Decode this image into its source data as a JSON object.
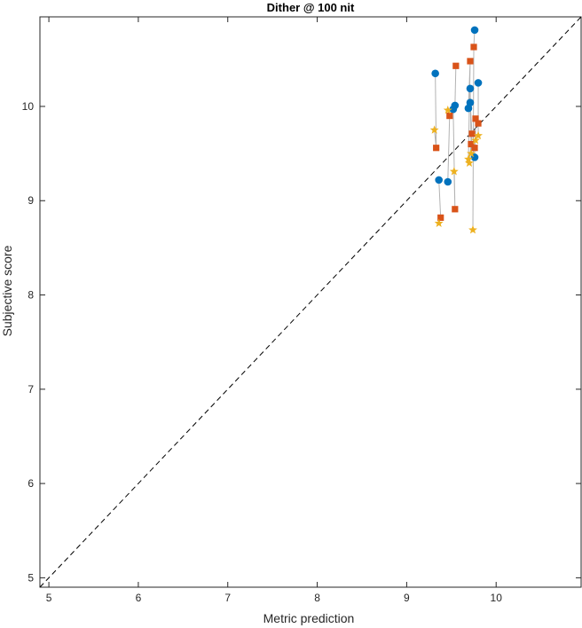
{
  "chart_data": {
    "type": "scatter",
    "title": "Dither @ 100 nit",
    "xlabel": "Metric prediction",
    "ylabel": "Subjective score",
    "xlim": [
      4.9,
      10.95
    ],
    "ylim": [
      4.9,
      10.95
    ],
    "xticks": [
      5,
      6,
      7,
      8,
      9,
      10
    ],
    "yticks": [
      5,
      6,
      7,
      8,
      9,
      10
    ],
    "xtick_labels": [
      "5",
      "6",
      "7",
      "8",
      "9",
      "10"
    ],
    "ytick_labels": [
      "5",
      "6",
      "7",
      "8",
      "9",
      "10"
    ],
    "reference_line": "y = x (dashed)",
    "grid": false,
    "series": [
      {
        "marker": "circle",
        "color": "#0072BD",
        "points": [
          [
            9.32,
            10.35
          ],
          [
            9.36,
            9.22
          ],
          [
            9.46,
            9.2
          ],
          [
            9.52,
            9.97
          ],
          [
            9.54,
            10.01
          ],
          [
            9.69,
            9.98
          ],
          [
            9.71,
            10.19
          ],
          [
            9.71,
            10.04
          ],
          [
            9.76,
            10.81
          ],
          [
            9.76,
            9.46
          ],
          [
            9.8,
            10.25
          ]
        ]
      },
      {
        "marker": "square",
        "color": "#D95319",
        "points": [
          [
            9.33,
            9.56
          ],
          [
            9.38,
            8.82
          ],
          [
            9.48,
            9.9
          ],
          [
            9.54,
            8.91
          ],
          [
            9.55,
            10.43
          ],
          [
            9.71,
            10.48
          ],
          [
            9.72,
            9.6
          ],
          [
            9.73,
            9.71
          ],
          [
            9.75,
            10.63
          ],
          [
            9.76,
            9.56
          ],
          [
            9.77,
            9.87
          ],
          [
            9.8,
            9.82
          ]
        ]
      },
      {
        "marker": "star",
        "color": "#EDB120",
        "points": [
          [
            9.31,
            9.75
          ],
          [
            9.36,
            8.76
          ],
          [
            9.46,
            9.96
          ],
          [
            9.53,
            9.31
          ],
          [
            9.69,
            9.44
          ],
          [
            9.7,
            9.4
          ],
          [
            9.72,
            9.5
          ],
          [
            9.74,
            8.69
          ],
          [
            9.77,
            9.64
          ],
          [
            9.8,
            9.69
          ]
        ]
      }
    ],
    "connectors": [
      [
        [
          9.32,
          10.35
        ],
        [
          9.33,
          9.56
        ],
        [
          9.31,
          9.75
        ]
      ],
      [
        [
          9.36,
          9.22
        ],
        [
          9.38,
          8.82
        ],
        [
          9.36,
          8.76
        ]
      ],
      [
        [
          9.46,
          9.2
        ],
        [
          9.48,
          9.9
        ],
        [
          9.46,
          9.96
        ]
      ],
      [
        [
          9.52,
          9.97
        ],
        [
          9.54,
          8.91
        ],
        [
          9.53,
          9.31
        ]
      ],
      [
        [
          9.54,
          10.01
        ],
        [
          9.55,
          10.43
        ]
      ],
      [
        [
          9.69,
          9.98
        ],
        [
          9.71,
          10.48
        ],
        [
          9.69,
          9.44
        ]
      ],
      [
        [
          9.71,
          10.19
        ],
        [
          9.72,
          9.6
        ],
        [
          9.7,
          9.4
        ]
      ],
      [
        [
          9.71,
          10.04
        ],
        [
          9.73,
          9.71
        ],
        [
          9.72,
          9.5
        ]
      ],
      [
        [
          9.76,
          10.81
        ],
        [
          9.75,
          10.63
        ],
        [
          9.74,
          8.69
        ]
      ],
      [
        [
          9.76,
          9.46
        ],
        [
          9.76,
          9.56
        ],
        [
          9.77,
          9.64
        ]
      ],
      [
        [
          9.8,
          10.25
        ],
        [
          9.8,
          9.82
        ],
        [
          9.8,
          9.69
        ]
      ],
      [
        [
          9.77,
          9.87
        ],
        [
          9.77,
          9.64
        ]
      ]
    ]
  }
}
